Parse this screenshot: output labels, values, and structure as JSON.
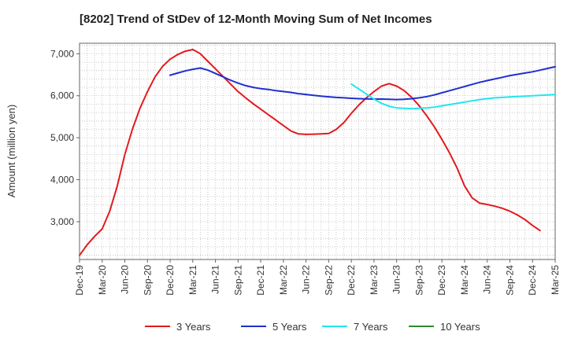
{
  "chart_data": {
    "type": "line",
    "title": "[8202]  Trend of StDev of 12-Month Moving Sum of Net Incomes",
    "ylabel": "Amount (million yen)",
    "xlabel": "",
    "ylim": [
      2100,
      7250
    ],
    "yticks": [
      3000,
      4000,
      5000,
      6000,
      7000
    ],
    "ytick_labels": [
      "3,000",
      "4,000",
      "5,000",
      "6,000",
      "7,000"
    ],
    "xlim": [
      "2019-12",
      "2025-03"
    ],
    "xtick_labels": [
      "Dec-19",
      "Mar-20",
      "Jun-20",
      "Sep-20",
      "Dec-20",
      "Mar-21",
      "Jun-21",
      "Sep-21",
      "Dec-21",
      "Mar-22",
      "Jun-22",
      "Sep-22",
      "Dec-22",
      "Mar-23",
      "Jun-23",
      "Sep-23",
      "Dec-23",
      "Mar-24",
      "Jun-24",
      "Sep-24",
      "Dec-24",
      "Mar-25"
    ],
    "grid": true,
    "legend_position": "bottom",
    "series": [
      {
        "name": "3 Years",
        "color": "#e31a1c",
        "start": "2019-12",
        "values": [
          2200,
          2450,
          2650,
          2830,
          3250,
          3850,
          4600,
          5200,
          5700,
          6100,
          6450,
          6700,
          6870,
          6980,
          7060,
          7100,
          7000,
          6820,
          6640,
          6460,
          6280,
          6100,
          5950,
          5810,
          5680,
          5550,
          5420,
          5290,
          5160,
          5090,
          5080,
          5085,
          5090,
          5100,
          5200,
          5360,
          5580,
          5780,
          5950,
          6100,
          6230,
          6290,
          6230,
          6120,
          5960,
          5760,
          5520,
          5260,
          4960,
          4640,
          4280,
          3850,
          3570,
          3440,
          3410,
          3370,
          3320,
          3250,
          3160,
          3050,
          2910,
          2790
        ]
      },
      {
        "name": "5 Years",
        "color": "#1f2fd0",
        "start": "2020-12",
        "values": [
          6490,
          6540,
          6590,
          6630,
          6660,
          6610,
          6530,
          6450,
          6370,
          6300,
          6240,
          6200,
          6170,
          6150,
          6120,
          6100,
          6080,
          6050,
          6030,
          6010,
          5990,
          5975,
          5960,
          5950,
          5940,
          5930,
          5925,
          5920,
          5920,
          5915,
          5910,
          5915,
          5930,
          5950,
          5980,
          6020,
          6070,
          6120,
          6170,
          6220,
          6270,
          6320,
          6360,
          6400,
          6440,
          6480,
          6510,
          6540,
          6570,
          6610,
          6650,
          6690
        ]
      },
      {
        "name": "7 Years",
        "color": "#22e6f0",
        "start": "2022-12",
        "values": [
          6280,
          6160,
          6040,
          5920,
          5820,
          5750,
          5710,
          5700,
          5690,
          5700,
          5710,
          5730,
          5760,
          5790,
          5820,
          5850,
          5880,
          5910,
          5930,
          5950,
          5960,
          5970,
          5980,
          5990,
          6000,
          6010,
          6020,
          6030
        ]
      },
      {
        "name": "10 Years",
        "color": "#2e8b2e",
        "start": "2024-12",
        "values": []
      }
    ]
  }
}
